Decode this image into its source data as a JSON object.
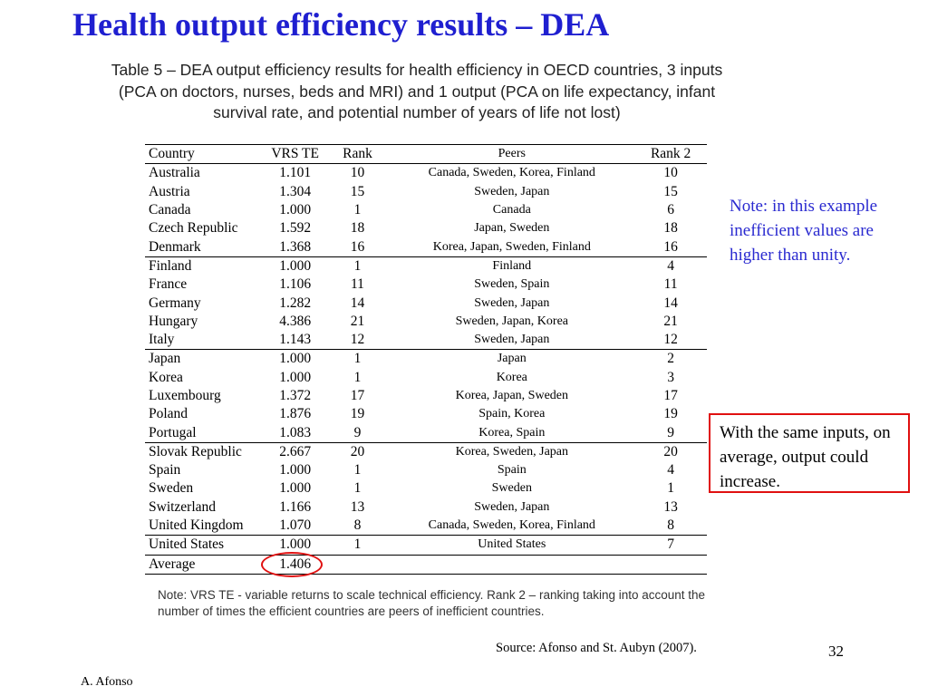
{
  "slide": {
    "title": "Health output efficiency results – DEA",
    "page_number": "32",
    "author": "A. Afonso",
    "source": "Source: Afonso and St. Aubyn (2007)."
  },
  "table": {
    "caption": "Table 5 – DEA output efficiency results for health efficiency in OECD countries, 3 inputs (PCA on doctors, nurses, beds and MRI) and 1 output (PCA on life expectancy, infant survival rate, and potential number of years of life not lost)",
    "headers": [
      "Country",
      "VRS TE",
      "Rank",
      "Peers",
      "Rank 2"
    ],
    "rows": [
      {
        "country": "Australia",
        "vrs": "1.101",
        "rank": "10",
        "peers": "Canada, Sweden, Korea, Finland",
        "rank2": "10"
      },
      {
        "country": "Austria",
        "vrs": "1.304",
        "rank": "15",
        "peers": "Sweden, Japan",
        "rank2": "15"
      },
      {
        "country": "Canada",
        "vrs": "1.000",
        "rank": "1",
        "peers": "Canada",
        "rank2": "6"
      },
      {
        "country": "Czech Republic",
        "vrs": "1.592",
        "rank": "18",
        "peers": "Japan, Sweden",
        "rank2": "18"
      },
      {
        "country": "Denmark",
        "vrs": "1.368",
        "rank": "16",
        "peers": "Korea, Japan, Sweden, Finland",
        "rank2": "16"
      },
      {
        "country": "Finland",
        "vrs": "1.000",
        "rank": "1",
        "peers": "Finland",
        "rank2": "4"
      },
      {
        "country": "France",
        "vrs": "1.106",
        "rank": "11",
        "peers": "Sweden, Spain",
        "rank2": "11"
      },
      {
        "country": "Germany",
        "vrs": "1.282",
        "rank": "14",
        "peers": "Sweden, Japan",
        "rank2": "14"
      },
      {
        "country": "Hungary",
        "vrs": "4.386",
        "rank": "21",
        "peers": "Sweden, Japan, Korea",
        "rank2": "21"
      },
      {
        "country": "Italy",
        "vrs": "1.143",
        "rank": "12",
        "peers": "Sweden, Japan",
        "rank2": "12"
      },
      {
        "country": "Japan",
        "vrs": "1.000",
        "rank": "1",
        "peers": "Japan",
        "rank2": "2"
      },
      {
        "country": "Korea",
        "vrs": "1.000",
        "rank": "1",
        "peers": "Korea",
        "rank2": "3"
      },
      {
        "country": "Luxembourg",
        "vrs": "1.372",
        "rank": "17",
        "peers": "Korea, Japan, Sweden",
        "rank2": "17"
      },
      {
        "country": "Poland",
        "vrs": "1.876",
        "rank": "19",
        "peers": "Spain, Korea",
        "rank2": "19"
      },
      {
        "country": "Portugal",
        "vrs": "1.083",
        "rank": "9",
        "peers": "Korea, Spain",
        "rank2": "9"
      },
      {
        "country": "Slovak Republic",
        "vrs": "2.667",
        "rank": "20",
        "peers": "Korea, Sweden, Japan",
        "rank2": "20"
      },
      {
        "country": "Spain",
        "vrs": "1.000",
        "rank": "1",
        "peers": "Spain",
        "rank2": "4"
      },
      {
        "country": "Sweden",
        "vrs": "1.000",
        "rank": "1",
        "peers": "Sweden",
        "rank2": "1"
      },
      {
        "country": "Switzerland",
        "vrs": "1.166",
        "rank": "13",
        "peers": "Sweden, Japan",
        "rank2": "13"
      },
      {
        "country": "United Kingdom",
        "vrs": "1.070",
        "rank": "8",
        "peers": "Canada, Sweden, Korea, Finland",
        "rank2": "8"
      },
      {
        "country": "United States",
        "vrs": "1.000",
        "rank": "1",
        "peers": "United States",
        "rank2": "7"
      }
    ],
    "average": {
      "label": "Average",
      "vrs": "1.406"
    },
    "note": "Note: VRS TE - variable returns to scale technical efficiency. Rank 2 – ranking taking into account the number of times the efficient countries are peers of inefficient countries."
  },
  "side_note": "Note: in this example inefficient values are higher than unity.",
  "callout": "With the same inputs, on average, output could increase.",
  "colors": {
    "title": "#1f1fd0",
    "side_note": "#2a2ad0",
    "highlight": "#e01010"
  }
}
